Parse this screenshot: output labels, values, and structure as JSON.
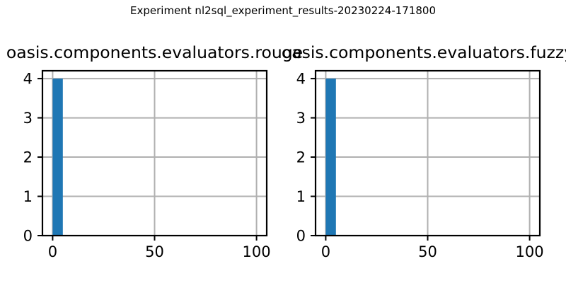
{
  "figure": {
    "suptitle": "Experiment nl2sql_experiment_results-20230224-171800"
  },
  "colors": {
    "bar": "#1f77b4",
    "grid": "#b0b0b0",
    "axis": "#000000"
  },
  "chart_data": [
    {
      "type": "bar",
      "title": "oasis.components.evaluators.rouge",
      "bins": [
        [
          0,
          5
        ]
      ],
      "values": [
        4
      ],
      "xlim": [
        -5,
        105
      ],
      "ylim": [
        0,
        4.2
      ],
      "xticks": [
        0,
        50,
        100
      ],
      "yticks": [
        0,
        1,
        2,
        3,
        4
      ],
      "grid": true
    },
    {
      "type": "bar",
      "title": "oasis.components.evaluators.fuzzy",
      "bins": [
        [
          0,
          5
        ]
      ],
      "values": [
        4
      ],
      "xlim": [
        -5,
        105
      ],
      "ylim": [
        0,
        4.2
      ],
      "xticks": [
        0,
        50,
        100
      ],
      "yticks": [
        0,
        1,
        2,
        3,
        4
      ],
      "grid": true
    }
  ]
}
